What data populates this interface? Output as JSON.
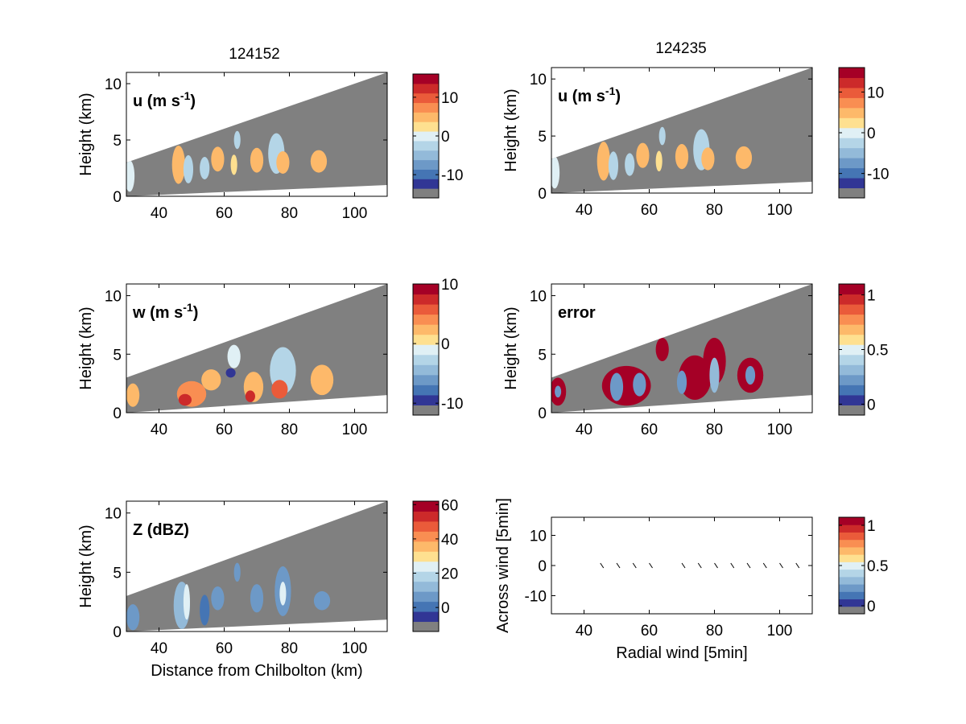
{
  "figure": {
    "title_left": "124152",
    "title_right": "124235"
  },
  "colors": {
    "background": "#ffffff",
    "no_data_gray": "#808080",
    "colormap": [
      "#313695",
      "#4575b4",
      "#6d99c7",
      "#93bad9",
      "#b4d5e7",
      "#e0f0f5",
      "#fee090",
      "#fdb96a",
      "#f98e52",
      "#ea5b3a",
      "#cc2a2a",
      "#a50026"
    ]
  },
  "chart_data": [
    {
      "id": "u_124152",
      "type": "heatmap",
      "panel_label": "u (m s",
      "panel_label_sup": "-1",
      "panel_label_end": ")",
      "ylabel": "Height (km)",
      "xlabel": "",
      "xlim": [
        30,
        110
      ],
      "ylim": [
        0,
        11
      ],
      "xticks": [
        40,
        60,
        80,
        100
      ],
      "yticks": [
        0,
        5,
        10
      ],
      "beam_top": [
        [
          30,
          3.0
        ],
        [
          110,
          11.0
        ]
      ],
      "beam_bottom": [
        [
          30,
          0.0
        ],
        [
          110,
          1.0
        ]
      ],
      "colorbar": {
        "range": [
          -16,
          16
        ],
        "ticks": [
          10,
          0,
          -10
        ],
        "tick_values": [
          10,
          0,
          -10
        ]
      },
      "echoes": [
        {
          "x": 31,
          "y": 1.8,
          "w": 3,
          "h": 2.8,
          "v": 0.5
        },
        {
          "x": 46,
          "y": 2.8,
          "w": 4,
          "h": 3.4,
          "v": 5
        },
        {
          "x": 49,
          "y": 2.4,
          "w": 3,
          "h": 2.5,
          "v": -2
        },
        {
          "x": 54,
          "y": 2.5,
          "w": 3,
          "h": 2.0,
          "v": -3
        },
        {
          "x": 58,
          "y": 3.3,
          "w": 4,
          "h": 2.2,
          "v": 6
        },
        {
          "x": 63,
          "y": 2.8,
          "w": 2,
          "h": 1.8,
          "v": 2
        },
        {
          "x": 64,
          "y": 5.0,
          "w": 2,
          "h": 1.6,
          "v": -2
        },
        {
          "x": 70,
          "y": 3.2,
          "w": 4,
          "h": 2.2,
          "v": 4
        },
        {
          "x": 76,
          "y": 3.8,
          "w": 5,
          "h": 3.6,
          "v": -3
        },
        {
          "x": 78,
          "y": 3.0,
          "w": 4,
          "h": 2.0,
          "v": 6
        },
        {
          "x": 89,
          "y": 3.1,
          "w": 5,
          "h": 2.0,
          "v": 6
        }
      ]
    },
    {
      "id": "u_124235",
      "type": "heatmap",
      "panel_label": "u (m s",
      "panel_label_sup": "-1",
      "panel_label_end": ")",
      "ylabel": "Height (km)",
      "xlabel": "",
      "xlim": [
        30,
        110
      ],
      "ylim": [
        0,
        11
      ],
      "xticks": [
        40,
        60,
        80,
        100
      ],
      "yticks": [
        0,
        5,
        10
      ],
      "beam_top": [
        [
          30,
          3.0
        ],
        [
          110,
          11.0
        ]
      ],
      "beam_bottom": [
        [
          30,
          0.0
        ],
        [
          110,
          1.0
        ]
      ],
      "colorbar": {
        "range": [
          -16,
          16
        ],
        "ticks": [
          10,
          0,
          -10
        ],
        "tick_values": [
          10,
          0,
          -10
        ]
      },
      "echoes": [
        {
          "x": 31,
          "y": 1.8,
          "w": 3,
          "h": 2.8,
          "v": 0.5
        },
        {
          "x": 46,
          "y": 2.8,
          "w": 4,
          "h": 3.4,
          "v": 5
        },
        {
          "x": 49,
          "y": 2.4,
          "w": 3,
          "h": 2.5,
          "v": -2
        },
        {
          "x": 54,
          "y": 2.5,
          "w": 3,
          "h": 2.0,
          "v": -3
        },
        {
          "x": 58,
          "y": 3.3,
          "w": 4,
          "h": 2.2,
          "v": 6
        },
        {
          "x": 63,
          "y": 2.8,
          "w": 2,
          "h": 1.8,
          "v": 2
        },
        {
          "x": 64,
          "y": 5.0,
          "w": 2,
          "h": 1.6,
          "v": -2
        },
        {
          "x": 70,
          "y": 3.2,
          "w": 4,
          "h": 2.2,
          "v": 4
        },
        {
          "x": 76,
          "y": 3.8,
          "w": 5,
          "h": 3.6,
          "v": -3
        },
        {
          "x": 78,
          "y": 3.0,
          "w": 4,
          "h": 2.0,
          "v": 6
        },
        {
          "x": 89,
          "y": 3.1,
          "w": 5,
          "h": 2.0,
          "v": 6
        }
      ]
    },
    {
      "id": "w_124152",
      "type": "heatmap",
      "panel_label": "w (m s",
      "panel_label_sup": "-1",
      "panel_label_end": ")",
      "ylabel": "Height (km)",
      "xlabel": "",
      "xlim": [
        30,
        110
      ],
      "ylim": [
        0,
        11
      ],
      "xticks": [
        40,
        60,
        80,
        100
      ],
      "yticks": [
        0,
        5,
        10
      ],
      "beam_top": [
        [
          30,
          3.0
        ],
        [
          110,
          11.0
        ]
      ],
      "beam_bottom": [
        [
          30,
          0.0
        ],
        [
          110,
          1.5
        ]
      ],
      "colorbar": {
        "range": [
          -12,
          10
        ],
        "ticks": [
          10,
          0,
          -10
        ],
        "tick_values": [
          10,
          0,
          -10
        ]
      },
      "echoes": [
        {
          "x": 32,
          "y": 1.5,
          "w": 4,
          "h": 2.0,
          "v": 3
        },
        {
          "x": 50,
          "y": 1.6,
          "w": 9,
          "h": 2.2,
          "v": 4
        },
        {
          "x": 48,
          "y": 1.1,
          "w": 4,
          "h": 1.0,
          "v": 8
        },
        {
          "x": 56,
          "y": 2.8,
          "w": 6,
          "h": 1.8,
          "v": 2
        },
        {
          "x": 63,
          "y": 4.8,
          "w": 4,
          "h": 2.0,
          "v": -1
        },
        {
          "x": 62,
          "y": 3.4,
          "w": 3,
          "h": 0.8,
          "v": -9
        },
        {
          "x": 69,
          "y": 2.2,
          "w": 6,
          "h": 2.6,
          "v": 3
        },
        {
          "x": 68,
          "y": 1.4,
          "w": 3,
          "h": 1.0,
          "v": 8
        },
        {
          "x": 78,
          "y": 3.6,
          "w": 8,
          "h": 4.0,
          "v": -2
        },
        {
          "x": 77,
          "y": 2.0,
          "w": 5,
          "h": 1.6,
          "v": 5
        },
        {
          "x": 90,
          "y": 2.8,
          "w": 7,
          "h": 2.6,
          "v": 2
        }
      ]
    },
    {
      "id": "error_124235",
      "type": "heatmap",
      "panel_label": "error",
      "panel_label_sup": "",
      "panel_label_end": "",
      "ylabel": "Height (km)",
      "xlabel": "",
      "xlim": [
        30,
        110
      ],
      "ylim": [
        0,
        11
      ],
      "xticks": [
        40,
        60,
        80,
        100
      ],
      "yticks": [
        0,
        5,
        10
      ],
      "beam_top": [
        [
          30,
          3.0
        ],
        [
          110,
          11.0
        ]
      ],
      "beam_bottom": [
        [
          30,
          0.0
        ],
        [
          110,
          1.5
        ]
      ],
      "colorbar": {
        "range": [
          -0.1,
          1.1
        ],
        "ticks": [
          1,
          0.5,
          0
        ],
        "tick_values": [
          1,
          0.5,
          0
        ]
      },
      "echoes": [
        {
          "x": 32,
          "y": 1.8,
          "w": 5,
          "h": 2.4,
          "v": 1.05
        },
        {
          "x": 32,
          "y": 1.8,
          "w": 2,
          "h": 1.0,
          "v": 0.2
        },
        {
          "x": 53,
          "y": 2.3,
          "w": 15,
          "h": 3.4,
          "v": 1.05
        },
        {
          "x": 50,
          "y": 2.2,
          "w": 4,
          "h": 2.4,
          "v": 0.2
        },
        {
          "x": 57,
          "y": 2.4,
          "w": 4,
          "h": 2.0,
          "v": 0.25
        },
        {
          "x": 64,
          "y": 5.4,
          "w": 4,
          "h": 2.0,
          "v": 1.05
        },
        {
          "x": 74,
          "y": 3.0,
          "w": 10,
          "h": 3.8,
          "v": 1.05
        },
        {
          "x": 80,
          "y": 4.4,
          "w": 7,
          "h": 4.0,
          "v": 1.05
        },
        {
          "x": 70,
          "y": 2.6,
          "w": 3,
          "h": 2.0,
          "v": 0.25
        },
        {
          "x": 80,
          "y": 3.2,
          "w": 3,
          "h": 3.0,
          "v": 0.3
        },
        {
          "x": 91,
          "y": 3.2,
          "w": 8,
          "h": 3.0,
          "v": 1.05
        },
        {
          "x": 91,
          "y": 3.2,
          "w": 3,
          "h": 1.6,
          "v": 0.25
        }
      ]
    },
    {
      "id": "Z_124152",
      "type": "heatmap",
      "panel_label": "Z (dBZ)",
      "panel_label_sup": "",
      "panel_label_end": "",
      "ylabel": "Height (km)",
      "xlabel": "Distance from Chilbolton (km)",
      "xlim": [
        30,
        110
      ],
      "ylim": [
        0,
        11
      ],
      "xticks": [
        40,
        60,
        80,
        100
      ],
      "yticks": [
        0,
        5,
        10
      ],
      "beam_top": [
        [
          30,
          3.0
        ],
        [
          110,
          11.0
        ]
      ],
      "beam_bottom": [
        [
          30,
          0.0
        ],
        [
          110,
          1.0
        ]
      ],
      "colorbar": {
        "range": [
          -14,
          62
        ],
        "ticks": [
          60,
          40,
          20,
          0
        ],
        "tick_values": [
          60,
          40,
          20,
          0
        ]
      },
      "echoes": [
        {
          "x": 32,
          "y": 1.2,
          "w": 4,
          "h": 2.2,
          "v": 5
        },
        {
          "x": 47,
          "y": 2.2,
          "w": 5,
          "h": 4.0,
          "v": 10
        },
        {
          "x": 48.5,
          "y": 2.5,
          "w": 2,
          "h": 3.0,
          "v": 24
        },
        {
          "x": 54,
          "y": 1.8,
          "w": 3,
          "h": 2.6,
          "v": 2
        },
        {
          "x": 58,
          "y": 2.8,
          "w": 4,
          "h": 2.0,
          "v": 6
        },
        {
          "x": 64,
          "y": 5.0,
          "w": 2,
          "h": 1.6,
          "v": 4
        },
        {
          "x": 70,
          "y": 2.8,
          "w": 4,
          "h": 2.4,
          "v": 6
        },
        {
          "x": 78,
          "y": 3.4,
          "w": 5,
          "h": 4.2,
          "v": 8
        },
        {
          "x": 78,
          "y": 3.2,
          "w": 2,
          "h": 2.0,
          "v": 22
        },
        {
          "x": 90,
          "y": 2.6,
          "w": 5,
          "h": 1.6,
          "v": 4
        }
      ]
    },
    {
      "id": "wind_124235",
      "type": "scatter",
      "panel_label": "",
      "panel_label_sup": "",
      "panel_label_end": "",
      "ylabel": "Across wind [5min]",
      "xlabel": "Radial wind [5min]",
      "xlim": [
        30,
        110
      ],
      "ylim": [
        -16,
        16
      ],
      "xticks": [
        40,
        60,
        80,
        100
      ],
      "yticks": [
        10,
        0,
        -10
      ],
      "colorbar": {
        "range": [
          -0.1,
          1.1
        ],
        "ticks": [
          1,
          0.5,
          0
        ],
        "tick_values": [
          1,
          0.5,
          0
        ]
      },
      "points_x": [
        45.5,
        50.5,
        55.5,
        60.5,
        70.5,
        75.5,
        80.5,
        85.5,
        90.5,
        95.5,
        100.5,
        105.5
      ],
      "points_y": [
        0,
        0,
        0,
        0,
        0,
        0,
        0,
        0,
        0,
        0,
        0,
        0
      ]
    }
  ]
}
